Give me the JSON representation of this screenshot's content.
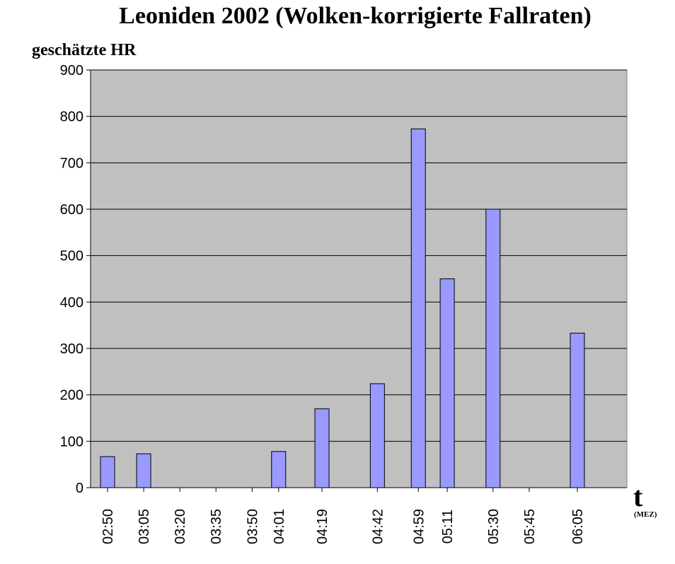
{
  "chart_data": {
    "type": "bar",
    "title": "Leoniden 2002 (Wolken-korrigierte Fallraten)",
    "y_label": "geschätzte HR",
    "x_label": "t",
    "x_unit": "(MEZ)",
    "x": [
      "02:50",
      "03:05",
      "03:20",
      "03:35",
      "03:50",
      "04:01",
      "04:19",
      "04:42",
      "04:59",
      "05:11",
      "05:30",
      "05:45",
      "06:05"
    ],
    "values": [
      67,
      73,
      null,
      null,
      null,
      78,
      170,
      224,
      773,
      450,
      600,
      null,
      333
    ],
    "color": "#9999ff",
    "ylim": [
      0,
      900
    ],
    "yticks": [
      0,
      100,
      200,
      300,
      400,
      500,
      600,
      700,
      800,
      900
    ],
    "grid": true
  }
}
